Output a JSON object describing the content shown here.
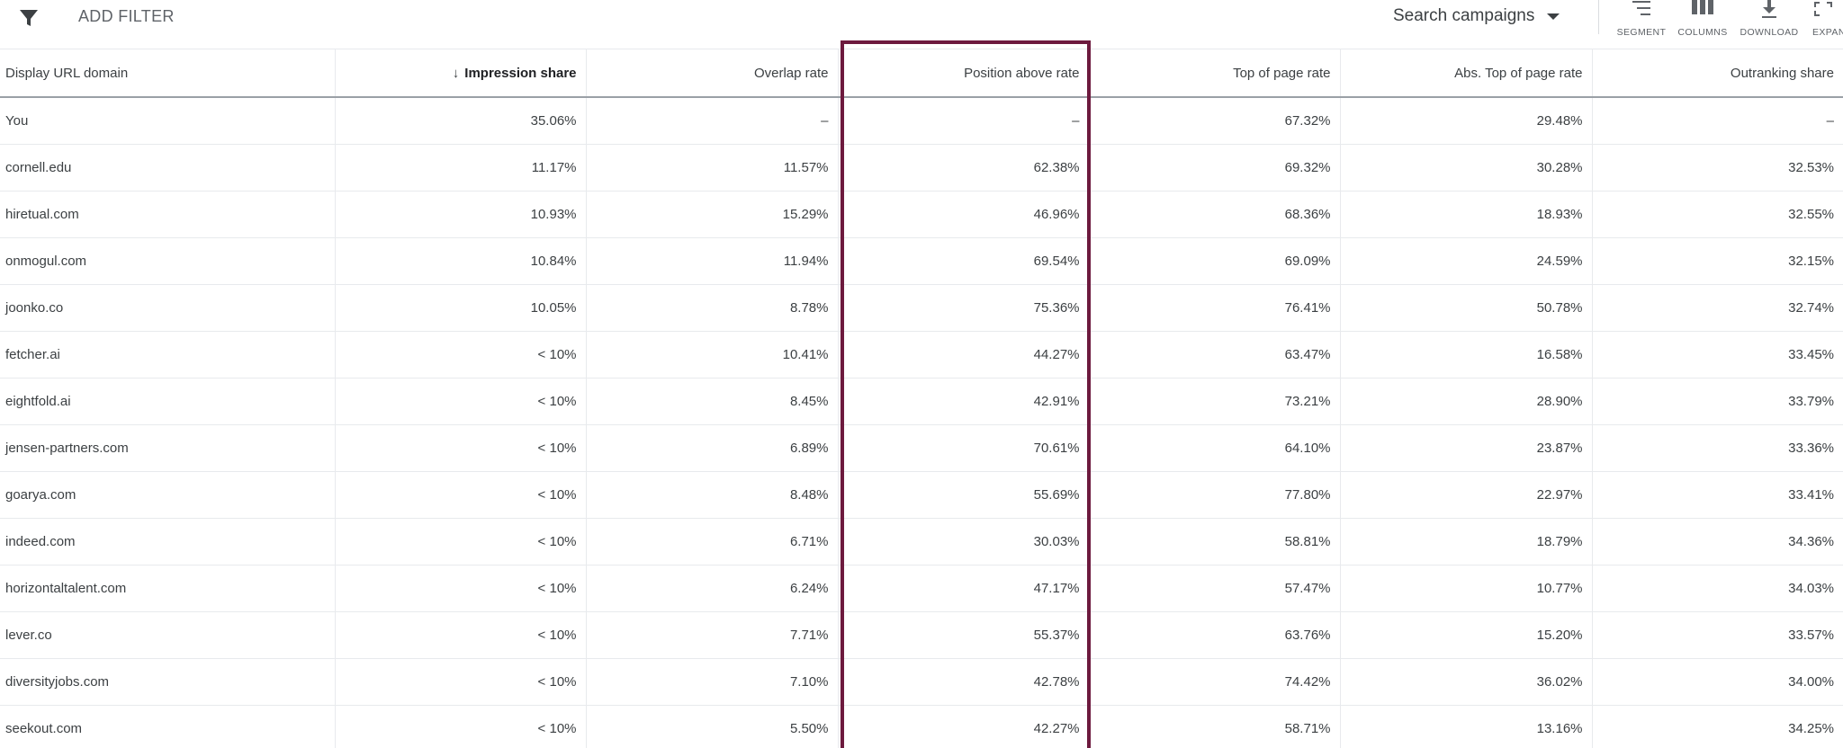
{
  "toolbar": {
    "add_filter_label": "ADD FILTER",
    "campaign_select_label": "Search campaigns",
    "buttons": {
      "segment": "SEGMENT",
      "columns": "COLUMNS",
      "download": "DOWNLOAD",
      "expand": "EXPAN"
    }
  },
  "table": {
    "headers": {
      "domain": "Display URL domain",
      "impression_share": "Impression share",
      "overlap_rate": "Overlap rate",
      "position_above_rate": "Position above rate",
      "top_of_page_rate": "Top of page rate",
      "abs_top_of_page_rate": "Abs. Top of page rate",
      "outranking_share": "Outranking share"
    },
    "sort_arrow": "↓",
    "rows": [
      {
        "domain": "You",
        "impression_share": "35.06%",
        "overlap_rate": "–",
        "position_above_rate": "–",
        "top_of_page_rate": "67.32%",
        "abs_top_of_page_rate": "29.48%",
        "outranking_share": "–"
      },
      {
        "domain": "cornell.edu",
        "impression_share": "11.17%",
        "overlap_rate": "11.57%",
        "position_above_rate": "62.38%",
        "top_of_page_rate": "69.32%",
        "abs_top_of_page_rate": "30.28%",
        "outranking_share": "32.53%"
      },
      {
        "domain": "hiretual.com",
        "impression_share": "10.93%",
        "overlap_rate": "15.29%",
        "position_above_rate": "46.96%",
        "top_of_page_rate": "68.36%",
        "abs_top_of_page_rate": "18.93%",
        "outranking_share": "32.55%"
      },
      {
        "domain": "onmogul.com",
        "impression_share": "10.84%",
        "overlap_rate": "11.94%",
        "position_above_rate": "69.54%",
        "top_of_page_rate": "69.09%",
        "abs_top_of_page_rate": "24.59%",
        "outranking_share": "32.15%"
      },
      {
        "domain": "joonko.co",
        "impression_share": "10.05%",
        "overlap_rate": "8.78%",
        "position_above_rate": "75.36%",
        "top_of_page_rate": "76.41%",
        "abs_top_of_page_rate": "50.78%",
        "outranking_share": "32.74%"
      },
      {
        "domain": "fetcher.ai",
        "impression_share": "< 10%",
        "overlap_rate": "10.41%",
        "position_above_rate": "44.27%",
        "top_of_page_rate": "63.47%",
        "abs_top_of_page_rate": "16.58%",
        "outranking_share": "33.45%"
      },
      {
        "domain": "eightfold.ai",
        "impression_share": "< 10%",
        "overlap_rate": "8.45%",
        "position_above_rate": "42.91%",
        "top_of_page_rate": "73.21%",
        "abs_top_of_page_rate": "28.90%",
        "outranking_share": "33.79%"
      },
      {
        "domain": "jensen-partners.com",
        "impression_share": "< 10%",
        "overlap_rate": "6.89%",
        "position_above_rate": "70.61%",
        "top_of_page_rate": "64.10%",
        "abs_top_of_page_rate": "23.87%",
        "outranking_share": "33.36%"
      },
      {
        "domain": "goarya.com",
        "impression_share": "< 10%",
        "overlap_rate": "8.48%",
        "position_above_rate": "55.69%",
        "top_of_page_rate": "77.80%",
        "abs_top_of_page_rate": "22.97%",
        "outranking_share": "33.41%"
      },
      {
        "domain": "indeed.com",
        "impression_share": "< 10%",
        "overlap_rate": "6.71%",
        "position_above_rate": "30.03%",
        "top_of_page_rate": "58.81%",
        "abs_top_of_page_rate": "18.79%",
        "outranking_share": "34.36%"
      },
      {
        "domain": "horizontaltalent.com",
        "impression_share": "< 10%",
        "overlap_rate": "6.24%",
        "position_above_rate": "47.17%",
        "top_of_page_rate": "57.47%",
        "abs_top_of_page_rate": "10.77%",
        "outranking_share": "34.03%"
      },
      {
        "domain": "lever.co",
        "impression_share": "< 10%",
        "overlap_rate": "7.71%",
        "position_above_rate": "55.37%",
        "top_of_page_rate": "63.76%",
        "abs_top_of_page_rate": "15.20%",
        "outranking_share": "33.57%"
      },
      {
        "domain": "diversityjobs.com",
        "impression_share": "< 10%",
        "overlap_rate": "7.10%",
        "position_above_rate": "42.78%",
        "top_of_page_rate": "74.42%",
        "abs_top_of_page_rate": "36.02%",
        "outranking_share": "34.00%"
      },
      {
        "domain": "seekout.com",
        "impression_share": "< 10%",
        "overlap_rate": "5.50%",
        "position_above_rate": "42.27%",
        "top_of_page_rate": "58.71%",
        "abs_top_of_page_rate": "13.16%",
        "outranking_share": "34.25%"
      }
    ]
  },
  "colors": {
    "highlight_border": "#6d1a3e",
    "header_rule": "#9aa0a6",
    "grid_line": "#e8eaed",
    "text": "#3c4043"
  },
  "icons": {
    "filter": "filter-icon",
    "dropdown": "caret-down-icon",
    "segment": "segment-icon",
    "columns": "columns-icon",
    "download": "download-icon",
    "expand": "expand-icon",
    "sort": "sort-desc-arrow-icon"
  }
}
